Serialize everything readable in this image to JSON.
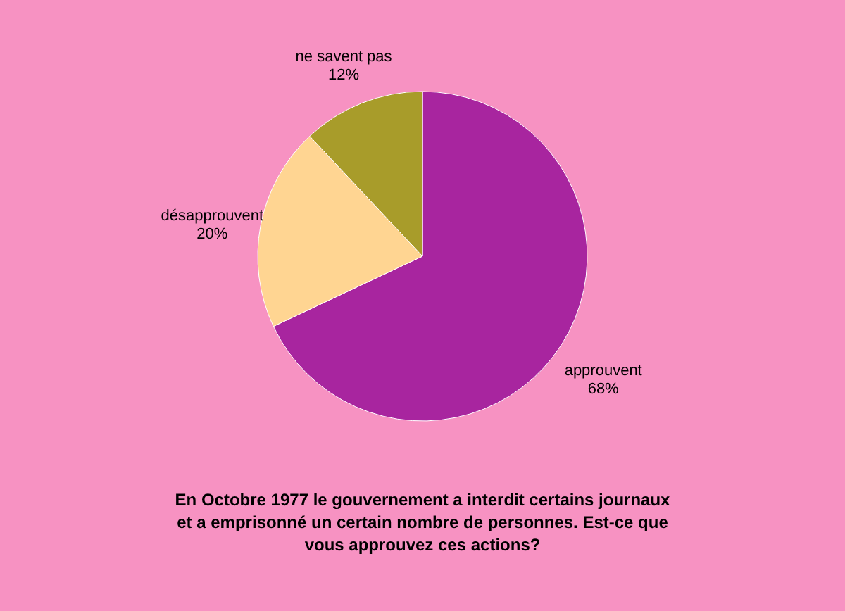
{
  "chart_data": {
    "type": "pie",
    "title": "En Octobre 1977 le gouvernement a interdit certains journaux et a emprisonné un certain nombre de personnes. Est-ce que vous approuvez ces actions?",
    "categories": [
      "approuvent",
      "désapprouvent",
      "ne savent pas"
    ],
    "values": [
      68,
      20,
      12
    ],
    "value_labels": [
      "68%",
      "20%",
      "12%"
    ],
    "colors": [
      "#a8259f",
      "#ffd592",
      "#a89c2a"
    ]
  }
}
